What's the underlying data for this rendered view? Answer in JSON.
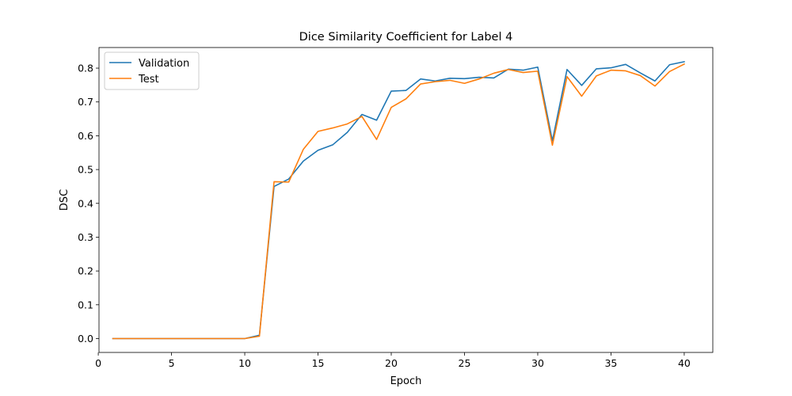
{
  "chart_data": {
    "type": "line",
    "title": "Dice Similarity Coefficient for Label 4",
    "xlabel": "Epoch",
    "ylabel": "DSC",
    "xlim": [
      0.05,
      41.95
    ],
    "ylim": [
      -0.041,
      0.861
    ],
    "xticks": [
      0,
      5,
      10,
      15,
      20,
      25,
      30,
      35,
      40
    ],
    "yticks": [
      0.0,
      0.1,
      0.2,
      0.3,
      0.4,
      0.5,
      0.6,
      0.7,
      0.8
    ],
    "grid": false,
    "legend_position": "top-left",
    "x": [
      1,
      2,
      3,
      4,
      5,
      6,
      7,
      8,
      9,
      10,
      11,
      12,
      13,
      14,
      15,
      16,
      17,
      18,
      19,
      20,
      21,
      22,
      23,
      24,
      25,
      26,
      27,
      28,
      29,
      30,
      31,
      32,
      33,
      34,
      35,
      36,
      37,
      38,
      39,
      40
    ],
    "series": [
      {
        "name": "Validation",
        "color": "#1f77b4",
        "values": [
          0.0,
          0.0,
          0.0,
          0.0,
          0.0,
          0.0,
          0.0,
          0.0,
          0.0,
          0.0,
          0.01,
          0.45,
          0.472,
          0.525,
          0.557,
          0.573,
          0.61,
          0.663,
          0.646,
          0.732,
          0.734,
          0.768,
          0.762,
          0.77,
          0.769,
          0.773,
          0.771,
          0.797,
          0.794,
          0.803,
          0.585,
          0.796,
          0.749,
          0.798,
          0.801,
          0.811,
          0.786,
          0.762,
          0.81,
          0.819
        ]
      },
      {
        "name": "Test",
        "color": "#ff7f0e",
        "values": [
          0.0,
          0.0,
          0.0,
          0.0,
          0.0,
          0.0,
          0.0,
          0.0,
          0.0,
          0.0,
          0.007,
          0.464,
          0.463,
          0.56,
          0.613,
          0.623,
          0.635,
          0.657,
          0.589,
          0.684,
          0.709,
          0.753,
          0.76,
          0.764,
          0.755,
          0.768,
          0.785,
          0.796,
          0.787,
          0.791,
          0.572,
          0.775,
          0.717,
          0.777,
          0.794,
          0.792,
          0.778,
          0.747,
          0.79,
          0.812
        ]
      }
    ]
  }
}
